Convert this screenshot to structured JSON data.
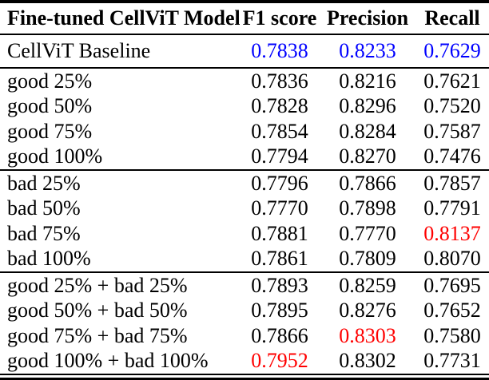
{
  "colors": {
    "background": "#ffffff",
    "text": "#000000",
    "rule": "#000000",
    "baseline_value_blue": "#0000ff",
    "best_value_red": "#ff0000"
  },
  "table": {
    "columns": [
      "Fine-tuned CellViT Model",
      "F1 score",
      "Precision",
      "Recall"
    ],
    "sections": [
      {
        "id": "baseline",
        "rows": [
          {
            "model": "CellViT Baseline",
            "values": [
              {
                "text": "0.7838",
                "color": "#0000ff"
              },
              {
                "text": "0.8233",
                "color": "#0000ff"
              },
              {
                "text": "0.7629",
                "color": "#0000ff"
              }
            ]
          }
        ]
      },
      {
        "id": "good",
        "rows": [
          {
            "model": "good 25%",
            "values": [
              {
                "text": "0.7836"
              },
              {
                "text": "0.8216"
              },
              {
                "text": "0.7621"
              }
            ]
          },
          {
            "model": "good 50%",
            "values": [
              {
                "text": "0.7828"
              },
              {
                "text": "0.8296"
              },
              {
                "text": "0.7520"
              }
            ]
          },
          {
            "model": "good 75%",
            "values": [
              {
                "text": "0.7854"
              },
              {
                "text": "0.8284"
              },
              {
                "text": "0.7587"
              }
            ]
          },
          {
            "model": "good 100%",
            "values": [
              {
                "text": "0.7794"
              },
              {
                "text": "0.8270"
              },
              {
                "text": "0.7476"
              }
            ]
          }
        ]
      },
      {
        "id": "bad",
        "rows": [
          {
            "model": "bad 25%",
            "values": [
              {
                "text": "0.7796"
              },
              {
                "text": "0.7866"
              },
              {
                "text": "0.7857"
              }
            ]
          },
          {
            "model": "bad 50%",
            "values": [
              {
                "text": "0.7770"
              },
              {
                "text": "0.7898"
              },
              {
                "text": "0.7791"
              }
            ]
          },
          {
            "model": "bad 75%",
            "values": [
              {
                "text": "0.7881"
              },
              {
                "text": "0.7770"
              },
              {
                "text": "0.8137",
                "color": "#ff0000"
              }
            ]
          },
          {
            "model": "bad 100%",
            "values": [
              {
                "text": "0.7861"
              },
              {
                "text": "0.7809"
              },
              {
                "text": "0.8070"
              }
            ]
          }
        ]
      },
      {
        "id": "good-plus-bad",
        "rows": [
          {
            "model": "good 25% + bad 25%",
            "values": [
              {
                "text": "0.7893"
              },
              {
                "text": "0.8259"
              },
              {
                "text": "0.7695"
              }
            ]
          },
          {
            "model": "good 50% + bad 50%",
            "values": [
              {
                "text": "0.7895"
              },
              {
                "text": "0.8276"
              },
              {
                "text": "0.7652"
              }
            ]
          },
          {
            "model": "good 75% + bad 75%",
            "values": [
              {
                "text": "0.7866"
              },
              {
                "text": "0.8303",
                "color": "#ff0000"
              },
              {
                "text": "0.7580"
              }
            ]
          },
          {
            "model": "good 100% + bad 100%",
            "values": [
              {
                "text": "0.7952",
                "color": "#ff0000"
              },
              {
                "text": "0.8302"
              },
              {
                "text": "0.7731"
              }
            ]
          }
        ]
      }
    ]
  }
}
